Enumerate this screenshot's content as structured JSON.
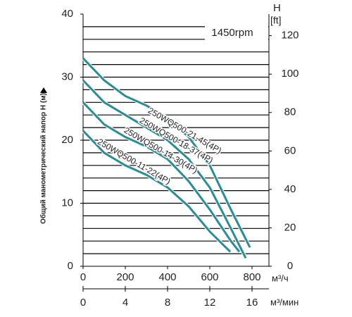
{
  "chart_data": {
    "type": "line",
    "y_title": "Общий манометрический напор H (м)",
    "y2_title": "H",
    "y2_unit": "[ft]",
    "x_unit": "м³/ч",
    "x2_unit": "м³/мин",
    "annotation": "1450rpm",
    "xlim": [
      0,
      880
    ],
    "xticks": [
      0,
      200,
      400,
      600,
      800
    ],
    "x2lim": [
      0,
      17.6
    ],
    "x2ticks": [
      0,
      4,
      8,
      12,
      16
    ],
    "ylim": [
      0,
      40
    ],
    "yticks": [
      0,
      10,
      20,
      30,
      40
    ],
    "y2lim": [
      0,
      131.23
    ],
    "y2ticks": [
      0,
      20,
      40,
      60,
      80,
      100,
      120
    ],
    "grid_y": [
      2,
      4,
      6,
      8,
      10,
      12,
      14,
      16,
      18,
      20,
      22,
      24,
      26,
      28,
      30,
      32,
      34,
      36,
      38
    ],
    "series": [
      {
        "name": "250WQ500-21-45(4P)",
        "color": "#2a8c96",
        "x": [
          0,
          100,
          200,
          300,
          400,
          500,
          600,
          700,
          790
        ],
        "values": [
          33,
          29.5,
          27,
          25.5,
          23.5,
          20.5,
          16,
          9,
          3
        ]
      },
      {
        "name": "250WQ500-18-37(4P)",
        "color": "#2a8c96",
        "x": [
          0,
          100,
          200,
          300,
          400,
          500,
          600,
          700,
          770
        ],
        "values": [
          29.5,
          26,
          24,
          22,
          20,
          17,
          12.5,
          6,
          1.3
        ]
      },
      {
        "name": "250WQ500-14-30(4P)",
        "color": "#2a8c96",
        "x": [
          0,
          100,
          200,
          300,
          400,
          500,
          600,
          700,
          740
        ],
        "values": [
          26,
          22.5,
          20.5,
          19,
          17,
          13.5,
          9,
          4,
          2.3
        ]
      },
      {
        "name": "250WQ500-11-22(4P)",
        "color": "#2a8c96",
        "x": [
          0,
          100,
          200,
          300,
          400,
          500,
          600,
          697
        ],
        "values": [
          21.5,
          18,
          16,
          14.5,
          12.5,
          9.5,
          5.5,
          2.3
        ]
      }
    ]
  }
}
